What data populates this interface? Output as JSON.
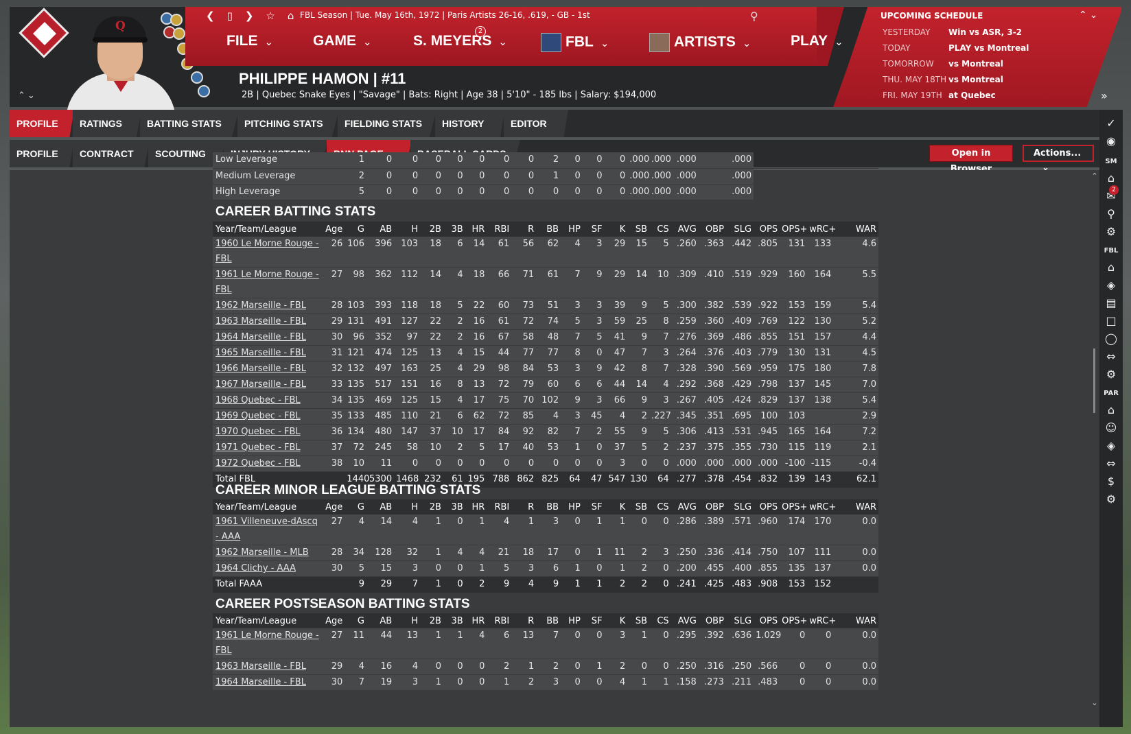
{
  "season_line": "FBL Season  |  Tue. May 16th, 1972  |  Paris Artists  26-16, .619, - GB - 1st",
  "menu": [
    {
      "label": "FILE"
    },
    {
      "label": "GAME"
    },
    {
      "label": "S. MEYERS",
      "badge": "2"
    },
    {
      "label": "FBL"
    },
    {
      "label": "ARTISTS"
    },
    {
      "label": "PLAY"
    }
  ],
  "player": {
    "name": "PHILIPPE HAMON  |  #11",
    "info": "2B | Quebec Snake Eyes  |  \"Savage\" | Bats: Right  |  Age 38  |  5'10\" - 185 lbs  |  Salary: $194,000"
  },
  "schedule": {
    "title": "UPCOMING SCHEDULE",
    "rows": [
      {
        "day": "YESTERDAY",
        "value": "Win vs ASR, 3-2"
      },
      {
        "day": "TODAY",
        "value": "PLAY vs Montreal"
      },
      {
        "day": "TOMORROW",
        "value": "vs Montreal"
      },
      {
        "day": "THU. MAY 18TH",
        "value": "vs Montreal"
      },
      {
        "day": "FRI. MAY 19TH",
        "value": "at Quebec"
      }
    ]
  },
  "tabs_primary": [
    "PROFILE",
    "RATINGS",
    "BATTING STATS",
    "PITCHING STATS",
    "FIELDING STATS",
    "HISTORY",
    "EDITOR"
  ],
  "tabs_secondary": [
    "PROFILE",
    "CONTRACT",
    "SCOUTING",
    "INJURY HISTORY",
    "BNN PAGE",
    "BASEBALL CARDS"
  ],
  "buttons": {
    "open_browser": "Open in Browser",
    "actions": "Actions..."
  },
  "sidebar": {
    "sm": "SM",
    "fbl": "FBL",
    "par": "PAR",
    "mail_badge": "2"
  },
  "leverage": {
    "rows": [
      {
        "label": "Low Leverage",
        "cells": [
          "1",
          "0",
          "0",
          "0",
          "0",
          "0",
          "0",
          "0",
          "2",
          "0",
          "0",
          "0",
          ".000",
          ".000",
          ".000",
          "",
          ".000"
        ]
      },
      {
        "label": "Medium Leverage",
        "cells": [
          "2",
          "0",
          "0",
          "0",
          "0",
          "0",
          "0",
          "0",
          "1",
          "0",
          "0",
          "0",
          ".000",
          ".000",
          ".000",
          "",
          ".000"
        ]
      },
      {
        "label": "High Leverage",
        "cells": [
          "5",
          "0",
          "0",
          "0",
          "0",
          "0",
          "0",
          "0",
          "0",
          "0",
          "0",
          "0",
          ".000",
          ".000",
          ".000",
          "",
          ".000"
        ]
      }
    ]
  },
  "columns": [
    "Year/Team/League",
    "Age",
    "G",
    "AB",
    "H",
    "2B",
    "3B",
    "HR",
    "RBI",
    "R",
    "BB",
    "HP",
    "SF",
    "K",
    "SB",
    "CS",
    "AVG",
    "OBP",
    "SLG",
    "OPS",
    "OPS+",
    "wRC+",
    "WAR"
  ],
  "career": {
    "title": "CAREER BATTING STATS",
    "rows": [
      [
        "1960 Le Morne Rouge - FBL",
        "26",
        "106",
        "396",
        "103",
        "18",
        "6",
        "14",
        "61",
        "56",
        "62",
        "4",
        "3",
        "29",
        "15",
        "5",
        ".260",
        ".363",
        ".442",
        ".805",
        "131",
        "133",
        "4.6"
      ],
      [
        "1961 Le Morne Rouge - FBL",
        "27",
        "98",
        "362",
        "112",
        "14",
        "4",
        "18",
        "66",
        "71",
        "61",
        "7",
        "9",
        "29",
        "14",
        "10",
        ".309",
        ".410",
        ".519",
        ".929",
        "160",
        "164",
        "5.5"
      ],
      [
        "1962 Marseille - FBL",
        "28",
        "103",
        "393",
        "118",
        "18",
        "5",
        "22",
        "60",
        "73",
        "51",
        "3",
        "3",
        "39",
        "9",
        "5",
        ".300",
        ".382",
        ".539",
        ".922",
        "153",
        "159",
        "5.4"
      ],
      [
        "1963 Marseille - FBL",
        "29",
        "131",
        "491",
        "127",
        "22",
        "2",
        "16",
        "61",
        "72",
        "74",
        "5",
        "3",
        "59",
        "25",
        "8",
        ".259",
        ".360",
        ".409",
        ".769",
        "122",
        "130",
        "5.2"
      ],
      [
        "1964 Marseille - FBL",
        "30",
        "96",
        "352",
        "97",
        "22",
        "2",
        "16",
        "67",
        "58",
        "48",
        "7",
        "5",
        "41",
        "9",
        "7",
        ".276",
        ".369",
        ".486",
        ".855",
        "151",
        "157",
        "4.4"
      ],
      [
        "1965 Marseille - FBL",
        "31",
        "121",
        "474",
        "125",
        "13",
        "4",
        "15",
        "44",
        "77",
        "77",
        "8",
        "0",
        "47",
        "7",
        "3",
        ".264",
        ".376",
        ".403",
        ".779",
        "130",
        "131",
        "4.5"
      ],
      [
        "1966 Marseille - FBL",
        "32",
        "132",
        "497",
        "163",
        "25",
        "4",
        "29",
        "98",
        "84",
        "53",
        "3",
        "9",
        "42",
        "8",
        "7",
        ".328",
        ".390",
        ".569",
        ".959",
        "175",
        "180",
        "7.8"
      ],
      [
        "1967 Marseille - FBL",
        "33",
        "135",
        "517",
        "151",
        "16",
        "8",
        "13",
        "72",
        "79",
        "60",
        "6",
        "6",
        "44",
        "14",
        "4",
        ".292",
        ".368",
        ".429",
        ".798",
        "137",
        "145",
        "7.0"
      ],
      [
        "1968 Quebec - FBL",
        "34",
        "135",
        "469",
        "125",
        "15",
        "4",
        "17",
        "75",
        "70",
        "102",
        "9",
        "3",
        "66",
        "9",
        "3",
        ".267",
        ".405",
        ".424",
        ".829",
        "137",
        "138",
        "5.4"
      ],
      [
        "1969 Quebec - FBL",
        "35",
        "133",
        "485",
        "110",
        "21",
        "6",
        "62",
        "72",
        "85",
        "4",
        "3",
        "45",
        "4",
        "2",
        ".227",
        ".345",
        ".351",
        ".695",
        "100",
        "103",
        "",
        "2.9"
      ],
      [
        "1970 Quebec - FBL",
        "36",
        "134",
        "480",
        "147",
        "37",
        "10",
        "17",
        "84",
        "92",
        "82",
        "7",
        "2",
        "55",
        "9",
        "5",
        ".306",
        ".413",
        ".531",
        ".945",
        "165",
        "164",
        "7.2"
      ],
      [
        "1971 Quebec - FBL",
        "37",
        "72",
        "245",
        "58",
        "10",
        "2",
        "5",
        "17",
        "40",
        "53",
        "1",
        "0",
        "37",
        "5",
        "2",
        ".237",
        ".375",
        ".355",
        ".730",
        "115",
        "119",
        "2.1"
      ],
      [
        "1972 Quebec - FBL",
        "38",
        "10",
        "11",
        "0",
        "0",
        "0",
        "0",
        "0",
        "0",
        "0",
        "0",
        "0",
        "3",
        "0",
        "0",
        ".000",
        ".000",
        ".000",
        ".000",
        "-100",
        "-115",
        "-0.4"
      ]
    ],
    "total": [
      "Total FBL",
      "",
      "1440",
      "5300",
      "1468",
      "232",
      "61",
      "195",
      "788",
      "862",
      "825",
      "64",
      "47",
      "547",
      "130",
      "64",
      ".277",
      ".378",
      ".454",
      ".832",
      "139",
      "143",
      "62.1"
    ]
  },
  "minor": {
    "title": "CAREER MINOR LEAGUE BATTING STATS",
    "rows": [
      [
        "1961 Villeneuve-dAscq - AAA",
        "27",
        "4",
        "14",
        "4",
        "1",
        "0",
        "1",
        "4",
        "1",
        "3",
        "0",
        "1",
        "1",
        "0",
        "0",
        ".286",
        ".389",
        ".571",
        ".960",
        "174",
        "170",
        "0.0"
      ],
      [
        "1962 Marseille - MLB",
        "28",
        "34",
        "128",
        "32",
        "1",
        "4",
        "4",
        "21",
        "18",
        "17",
        "0",
        "1",
        "11",
        "2",
        "3",
        ".250",
        ".336",
        ".414",
        ".750",
        "107",
        "111",
        "0.0"
      ],
      [
        "1964 Clichy - AAA",
        "30",
        "5",
        "15",
        "3",
        "0",
        "0",
        "1",
        "5",
        "3",
        "6",
        "1",
        "0",
        "1",
        "2",
        "0",
        ".200",
        ".455",
        ".400",
        ".855",
        "135",
        "137",
        "0.0"
      ]
    ],
    "total": [
      "Total FAAA",
      "",
      "9",
      "29",
      "7",
      "1",
      "0",
      "2",
      "9",
      "4",
      "9",
      "1",
      "1",
      "2",
      "2",
      "0",
      ".241",
      ".425",
      ".483",
      ".908",
      "153",
      "152",
      ""
    ]
  },
  "post": {
    "title": "CAREER POSTSEASON BATTING STATS",
    "rows": [
      [
        "1961 Le Morne Rouge - FBL",
        "27",
        "11",
        "44",
        "13",
        "1",
        "1",
        "4",
        "6",
        "13",
        "7",
        "0",
        "0",
        "3",
        "1",
        "0",
        ".295",
        ".392",
        ".636",
        "1.029",
        "0",
        "0",
        "0.0"
      ],
      [
        "1963 Marseille - FBL",
        "29",
        "4",
        "16",
        "4",
        "0",
        "0",
        "0",
        "2",
        "1",
        "2",
        "0",
        "1",
        "2",
        "0",
        "0",
        ".250",
        ".316",
        ".250",
        ".566",
        "0",
        "0",
        "0.0"
      ],
      [
        "1964 Marseille - FBL",
        "30",
        "7",
        "19",
        "3",
        "1",
        "0",
        "0",
        "1",
        "2",
        "3",
        "0",
        "0",
        "4",
        "1",
        "1",
        ".158",
        ".273",
        ".211",
        ".483",
        "0",
        "0",
        "0.0"
      ]
    ]
  }
}
